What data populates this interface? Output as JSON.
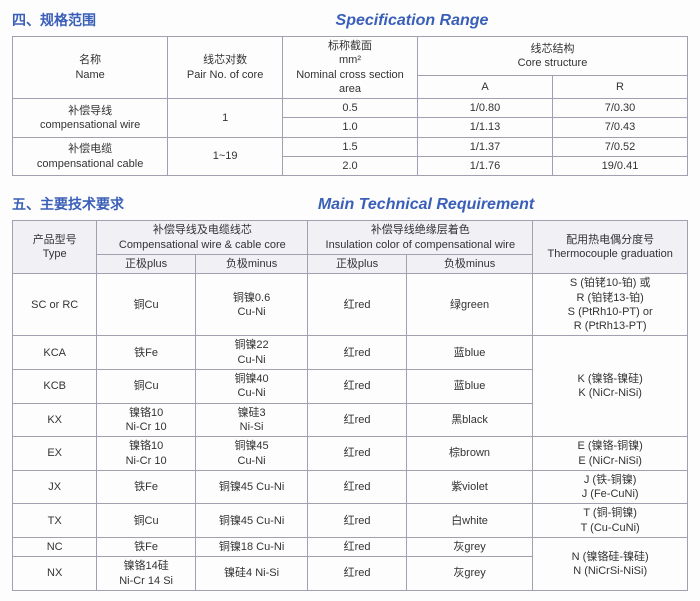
{
  "colors": {
    "header": "#3a5fb8",
    "border": "#a0a0b0",
    "bg": "#fdfdfd",
    "th_bg": "#f0f0f5",
    "text": "#333333"
  },
  "fonts": {
    "header_left_size": 14,
    "header_right_size": 16,
    "table_size": 11
  },
  "section1": {
    "left_title": "四、规格范围",
    "right_title": "Specification Range",
    "table": {
      "headers": {
        "name": "名称\nName",
        "pairno": "线芯对数\nPair No. of core",
        "cross": "标称截面\nmm²\nNominal cross section\narea",
        "core": "线芯结构\nCore structure",
        "A": "A",
        "R": "R"
      },
      "rows": [
        {
          "name": "补偿导线\ncompensational wire",
          "pair": "1",
          "cross": "0.5",
          "A": "1/0.80",
          "R": "7/0.30"
        },
        {
          "name_skip": true,
          "pair_skip": true,
          "cross": "1.0",
          "A": "1/1.13",
          "R": "7/0.43"
        },
        {
          "name": "补偿电缆\ncompensational cable",
          "pair": "1~19",
          "cross": "1.5",
          "A": "1/1.37",
          "R": "7/0.52"
        },
        {
          "name_skip": true,
          "pair_skip": true,
          "cross": "2.0",
          "A": "1/1.76",
          "R": "19/0.41"
        }
      ]
    }
  },
  "section2": {
    "left_title": "五、主要技术要求",
    "right_title": "Main Technical Requirement",
    "table": {
      "headers": {
        "type": "产品型号\nType",
        "core": "补偿导线及电缆线芯\nCompensational wire & cable core",
        "plus": "正极plus",
        "minus": "负极minus",
        "ins": "补偿导线绝缘层着色\nInsulation color of compensational wire",
        "plus2": "正极plus",
        "minus2": "负极minus",
        "tc": "配用热电偶分度号\nThermocouple graduation"
      },
      "rows": [
        {
          "type": "SC or RC",
          "plus": "铜Cu",
          "minus": "铜镍0.6\nCu-Ni",
          "insplus": "红red",
          "insminus": "绿green",
          "tc": "S (铂铑10-铂) 或\nR (铂铑13-铂)\nS (PtRh10-PT) or\nR (PtRh13-PT)"
        },
        {
          "type": "KCA",
          "plus": "铁Fe",
          "minus": "铜镍22\nCu-Ni",
          "insplus": "红red",
          "insminus": "蓝blue",
          "tc": "K (镍铬-镍硅)\nK (NiCr-NiSi)",
          "tc_rowspan": 3
        },
        {
          "type": "KCB",
          "plus": "铜Cu",
          "minus": "铜镍40\nCu-Ni",
          "insplus": "红red",
          "insminus": "蓝blue"
        },
        {
          "type": "KX",
          "plus": "镍铬10\nNi-Cr 10",
          "minus": "镍硅3\nNi-Si",
          "insplus": "红red",
          "insminus": "黑black"
        },
        {
          "type": "EX",
          "plus": "镍铬10\nNi-Cr 10",
          "minus": "铜镍45\nCu-Ni",
          "insplus": "红red",
          "insminus": "棕brown",
          "tc": "E (镍铬-铜镍)\nE (NiCr-NiSi)"
        },
        {
          "type": "JX",
          "plus": "铁Fe",
          "minus": "铜镍45 Cu-Ni",
          "insplus": "红red",
          "insminus": "紫violet",
          "tc": "J (铁-铜镍)\nJ (Fe-CuNi)"
        },
        {
          "type": "TX",
          "plus": "铜Cu",
          "minus": "铜镍45 Cu-Ni",
          "insplus": "红red",
          "insminus": "白white",
          "tc": "T (铜-铜镍)\nT (Cu-CuNi)"
        },
        {
          "type": "NC",
          "plus": "铁Fe",
          "minus": "铜镍18 Cu-Ni",
          "insplus": "红red",
          "insminus": "灰grey",
          "tc": "N (镍铬硅-镍硅)\nN (NiCrSi-NiSi)",
          "tc_rowspan": 2
        },
        {
          "type": "NX",
          "plus": "镍铬14硅\nNi-Cr 14 Si",
          "minus": "镍硅4 Ni-Si",
          "insplus": "红red",
          "insminus": "灰grey"
        }
      ]
    }
  }
}
